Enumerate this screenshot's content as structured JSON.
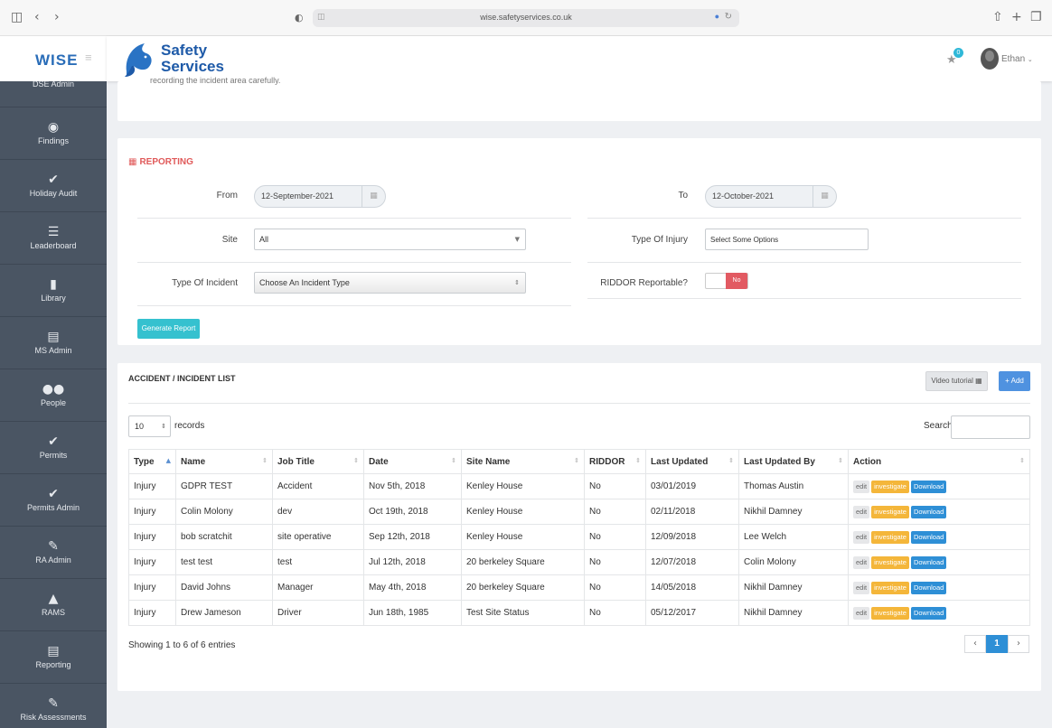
{
  "browser": {
    "url": "wise.safetyservices.co.uk"
  },
  "sidebar": {
    "brand": "WISE",
    "partial_item": "DSE Admin",
    "items": [
      {
        "label": "Findings",
        "icon": "eye-icon"
      },
      {
        "label": "Holiday Audit",
        "icon": "check-icon"
      },
      {
        "label": "Leaderboard",
        "icon": "list-icon"
      },
      {
        "label": "Library",
        "icon": "book-icon"
      },
      {
        "label": "MS Admin",
        "icon": "list-alt-icon"
      },
      {
        "label": "People",
        "icon": "people-icon"
      },
      {
        "label": "Permits",
        "icon": "check-icon"
      },
      {
        "label": "Permits Admin",
        "icon": "check-icon"
      },
      {
        "label": "RA Admin",
        "icon": "pencil-icon"
      },
      {
        "label": "RAMS",
        "icon": "warning-icon"
      },
      {
        "label": "Reporting",
        "icon": "file-icon"
      },
      {
        "label": "Risk Assessments",
        "icon": "pencil-icon"
      }
    ]
  },
  "header": {
    "logo_line1": "Safety",
    "logo_line2": "Services",
    "notification_count": "0",
    "user_name": "Ethan"
  },
  "top_card": {
    "cut_text": "recording the incident area carefully."
  },
  "reporting": {
    "title": "REPORTING",
    "from_label": "From",
    "from_value": "12-September-2021",
    "to_label": "To",
    "to_value": "12-October-2021",
    "site_label": "Site",
    "site_value": "All",
    "injury_label": "Type Of Injury",
    "injury_placeholder": "Select Some Options",
    "incident_label": "Type Of Incident",
    "incident_value": "Choose An Incident Type",
    "riddor_label": "RIDDOR Reportable?",
    "riddor_value": "No",
    "generate_button": "Generate Report"
  },
  "list": {
    "title": "ACCIDENT / INCIDENT LIST",
    "video_button": "Video tutorial",
    "add_button": "+ Add",
    "length_value": "10",
    "records_label": "records",
    "search_label": "Search:",
    "columns": [
      "Type",
      "Name",
      "Job Title",
      "Date",
      "Site Name",
      "RIDDOR",
      "Last Updated",
      "Last Updated By",
      "Action"
    ],
    "rows": [
      {
        "type": "Injury",
        "name": "GDPR TEST",
        "job": "Accident",
        "date": "Nov 5th, 2018",
        "site": "Kenley House",
        "riddor": "No",
        "updated": "03/01/2019",
        "by": "Thomas Austin"
      },
      {
        "type": "Injury",
        "name": "Colin Molony",
        "job": "dev",
        "date": "Oct 19th, 2018",
        "site": "Kenley House",
        "riddor": "No",
        "updated": "02/11/2018",
        "by": "Nikhil Damney"
      },
      {
        "type": "Injury",
        "name": "bob scratchit",
        "job": "site operative",
        "date": "Sep 12th, 2018",
        "site": "Kenley House",
        "riddor": "No",
        "updated": "12/09/2018",
        "by": "Lee Welch"
      },
      {
        "type": "Injury",
        "name": "test test",
        "job": "test",
        "date": "Jul 12th, 2018",
        "site": "20 berkeley Square",
        "riddor": "No",
        "updated": "12/07/2018",
        "by": "Colin Molony"
      },
      {
        "type": "Injury",
        "name": "David Johns",
        "job": "Manager",
        "date": "May 4th, 2018",
        "site": "20 berkeley Square",
        "riddor": "No",
        "updated": "14/05/2018",
        "by": "Nikhil Damney"
      },
      {
        "type": "Injury",
        "name": "Drew Jameson",
        "job": "Driver",
        "date": "Jun 18th, 1985",
        "site": "Test Site Status",
        "riddor": "No",
        "updated": "05/12/2017",
        "by": "Nikhil Damney"
      }
    ],
    "actions": {
      "edit": "edit",
      "investigate": "investigate",
      "download": "Download"
    },
    "showing": "Showing 1 to 6 of 6 entries",
    "current_page": "1"
  }
}
